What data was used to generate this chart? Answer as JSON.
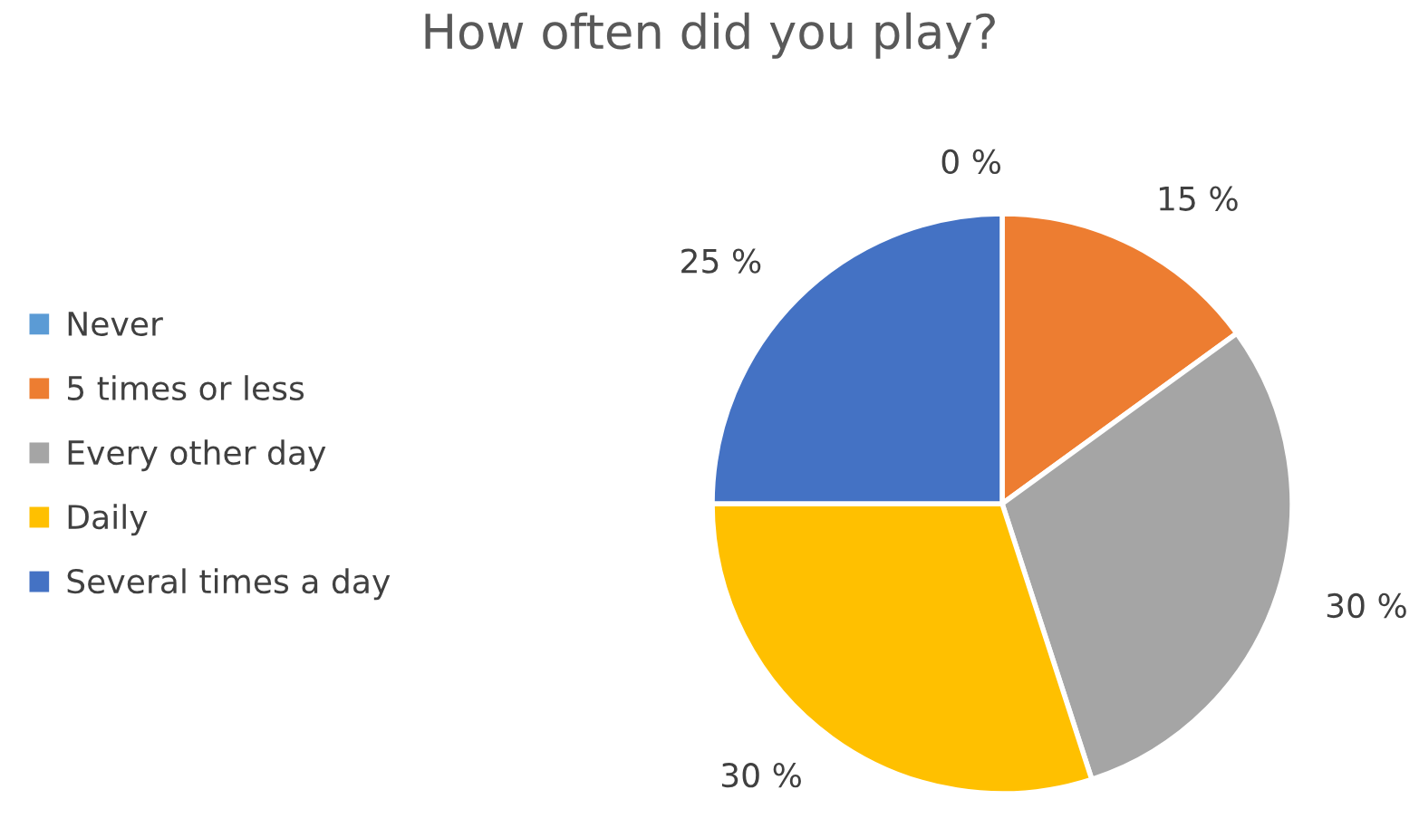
{
  "chart_data": {
    "type": "pie",
    "title": "How often did you play?",
    "categories": [
      "Never",
      "5 times or less",
      "Every other day",
      "Daily",
      "Several times a day"
    ],
    "values": [
      0,
      15,
      30,
      30,
      25
    ],
    "value_labels": [
      "0 %",
      "15 %",
      "30 %",
      "30 %",
      "25 %"
    ],
    "colors": [
      "#5b9bd5",
      "#ed7d31",
      "#a5a5a5",
      "#ffc000",
      "#4472c4"
    ],
    "legend": "left"
  }
}
